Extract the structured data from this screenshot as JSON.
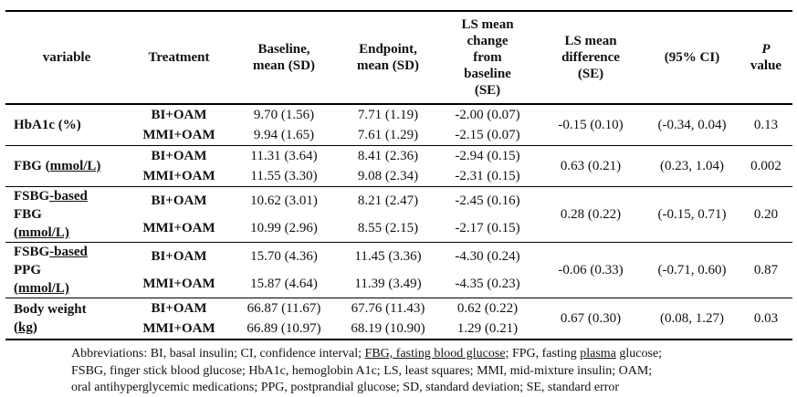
{
  "page": {
    "background": "#ffffff",
    "text_color": "#111111",
    "rule_color": "#000000"
  },
  "table": {
    "headers": [
      [
        {
          "t": "variable"
        }
      ],
      [
        {
          "t": "Treatment"
        }
      ],
      [
        {
          "t": "Baseline,"
        },
        {
          "br": true
        },
        {
          "t": "mean (SD)"
        }
      ],
      [
        {
          "t": "Endpoint,"
        },
        {
          "br": true
        },
        {
          "t": "mean (SD)"
        }
      ],
      [
        {
          "t": "LS mean"
        },
        {
          "br": true
        },
        {
          "t": "change"
        },
        {
          "br": true
        },
        {
          "t": "from"
        },
        {
          "br": true
        },
        {
          "t": "baseline"
        },
        {
          "br": true
        },
        {
          "t": "(SE)"
        }
      ],
      [
        {
          "t": "LS mean"
        },
        {
          "br": true
        },
        {
          "t": "difference"
        },
        {
          "br": true
        },
        {
          "t": "(SE)"
        }
      ],
      [
        {
          "t": "(95% CI)"
        }
      ],
      [
        {
          "t": "P",
          "i": true
        },
        {
          "br": true
        },
        {
          "t": "value"
        }
      ]
    ],
    "groups": [
      {
        "variable": [
          {
            "t": "HbA1c (%)"
          }
        ],
        "rows": [
          {
            "treatment": "BI+OAM",
            "baseline": "9.70 (1.56)",
            "endpoint": "7.71 (1.19)",
            "change": "-2.00 (0.07)"
          },
          {
            "treatment": "MMI+OAM",
            "baseline": "9.94 (1.65)",
            "endpoint": "7.61 (1.29)",
            "change": "-2.15 (0.07)"
          }
        ],
        "difference": "-0.15 (0.10)",
        "ci": "(-0.34, 0.04)",
        "p": "0.13"
      },
      {
        "variable": [
          {
            "t": "FBG ("
          },
          {
            "t": "mmol/L)",
            "u": true
          }
        ],
        "rows": [
          {
            "treatment": "BI+OAM",
            "baseline": "11.31 (3.64)",
            "endpoint": "8.41 (2.36)",
            "change": "-2.94 (0.15)"
          },
          {
            "treatment": "MMI+OAM",
            "baseline": "11.55 (3.30)",
            "endpoint": "9.08 (2.34)",
            "change": "-2.31 (0.15)"
          }
        ],
        "difference": "0.63 (0.21)",
        "ci": "(0.23, 1.04)",
        "p": "0.002"
      },
      {
        "variable": [
          {
            "t": "FSBG"
          },
          {
            "t": "-based",
            "u": true
          },
          {
            "br": true
          },
          {
            "t": "FBG"
          },
          {
            "br": true
          },
          {
            "t": "(mmol/L)",
            "u": true
          }
        ],
        "rows": [
          {
            "treatment": "BI+OAM",
            "baseline": "10.62 (3.01)",
            "endpoint": "8.21 (2.47)",
            "change": "-2.45 (0.16)"
          },
          {
            "treatment": "MMI+OAM",
            "baseline": "10.99 (2.96)",
            "endpoint": "8.55 (2.15)",
            "change": "-2.17 (0.15)"
          }
        ],
        "difference": "0.28 (0.22)",
        "ci": "(-0.15, 0.71)",
        "p": "0.20"
      },
      {
        "variable": [
          {
            "t": "FSBG"
          },
          {
            "t": "-based",
            "u": true
          },
          {
            "br": true
          },
          {
            "t": "PPG"
          },
          {
            "br": true
          },
          {
            "t": "(mmol/L)",
            "u": true
          }
        ],
        "rows": [
          {
            "treatment": "BI+OAM",
            "baseline": "15.70 (4.36)",
            "endpoint": "11.45 (3.36)",
            "change": "-4.30 (0.24)"
          },
          {
            "treatment": "MMI+OAM",
            "baseline": "15.87 (4.64)",
            "endpoint": "11.39 (3.49)",
            "change": "-4.35 (0.23)"
          }
        ],
        "difference": "-0.06 (0.33)",
        "ci": "(-0.71, 0.60)",
        "p": "0.87"
      },
      {
        "variable": [
          {
            "t": "Body weight"
          },
          {
            "br": true
          },
          {
            "t": "("
          },
          {
            "t": "kg",
            "u": true
          },
          {
            "t": ")"
          }
        ],
        "rows": [
          {
            "treatment": "BI+OAM",
            "baseline": "66.87 (11.67)",
            "endpoint": "67.76 (11.43)",
            "change": "0.62 (0.22)"
          },
          {
            "treatment": "MMI+OAM",
            "baseline": "66.89 (10.97)",
            "endpoint": "68.19 (10.90)",
            "change": "1.29 (0.21)"
          }
        ],
        "difference": "0.67 (0.30)",
        "ci": "(0.08, 1.27)",
        "p": "0.03"
      }
    ],
    "footnote_lines": [
      [
        {
          "t": "Abbreviations: BI, basal insulin; CI, confidence interval; "
        },
        {
          "t": "FBG, fasting blood glucose;",
          "u": true
        },
        {
          "t": " FPG, fasting "
        },
        {
          "t": "plasma",
          "u": true
        },
        {
          "t": " glucose;"
        }
      ],
      [
        {
          "t": "FSBG, finger stick blood glucose; HbA1c, hemoglobin A1c; LS, least squares; MMI, mid-mixture insulin; OAM;"
        }
      ],
      [
        {
          "t": "oral antihyperglycemic medications; PPG, postprandial glucose; SD, standard deviation; SE, standard error"
        }
      ]
    ]
  }
}
